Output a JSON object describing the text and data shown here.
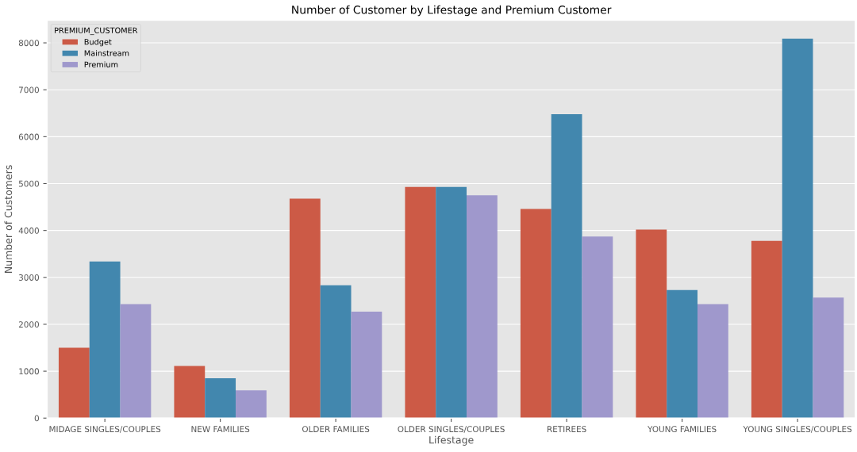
{
  "chart_data": {
    "type": "bar",
    "title": "Number of Customer by Lifestage and Premium Customer",
    "xlabel": "Lifestage",
    "ylabel": "Number of Customers",
    "legend_title": "PREMIUM_CUSTOMER",
    "categories": [
      "MIDAGE SINGLES/COUPLES",
      "NEW FAMILIES",
      "OLDER FAMILIES",
      "OLDER SINGLES/COUPLES",
      "RETIREES",
      "YOUNG FAMILIES",
      "YOUNG SINGLES/COUPLES"
    ],
    "series": [
      {
        "name": "Budget",
        "color": "#cc5a46",
        "values": [
          1500,
          1110,
          4680,
          4930,
          4460,
          4020,
          3780
        ]
      },
      {
        "name": "Mainstream",
        "color": "#4287ae",
        "values": [
          3340,
          850,
          2830,
          4930,
          6480,
          2730,
          8090
        ]
      },
      {
        "name": "Premium",
        "color": "#9f98cc",
        "values": [
          2430,
          590,
          2270,
          4750,
          3870,
          2430,
          2570
        ]
      }
    ],
    "ylim": [
      0,
      8480
    ],
    "yticks": [
      0,
      1000,
      2000,
      3000,
      4000,
      5000,
      6000,
      7000,
      8000
    ],
    "grid": "y",
    "legend": "top left"
  }
}
